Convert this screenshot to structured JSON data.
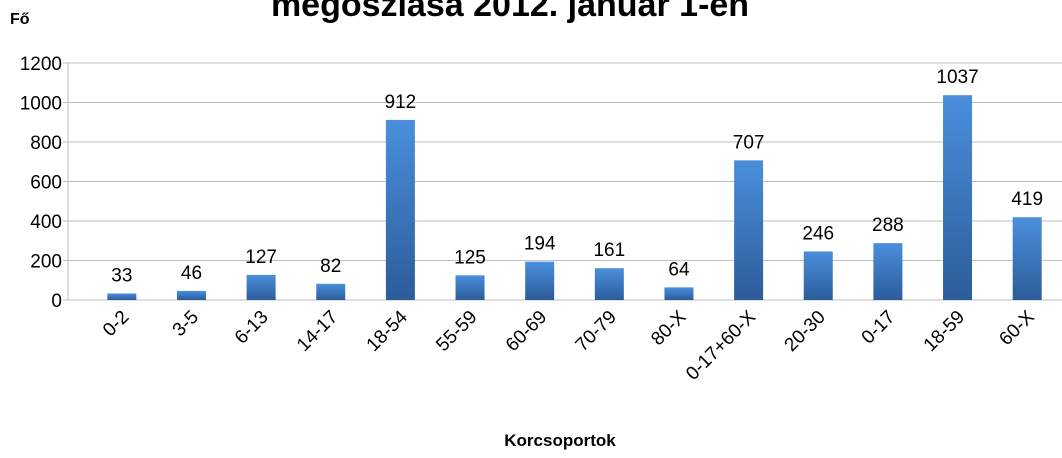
{
  "chart_data": {
    "type": "bar",
    "title": "megoszlása 2012. január 1-én",
    "y_label": "Fő",
    "x_label": "Korcsoportok",
    "categories": [
      "0-2",
      "3-5",
      "6-13",
      "14-17",
      "18-54",
      "55-59",
      "60-69",
      "70-79",
      "80-X",
      "0-17+60-X",
      "20-30",
      "0-17",
      "18-59",
      "60-X"
    ],
    "values": [
      33,
      46,
      127,
      82,
      912,
      125,
      194,
      161,
      64,
      707,
      246,
      288,
      1037,
      419
    ],
    "color": "#3d7cc9",
    "ylim": [
      0,
      1200
    ],
    "yticks": [
      0,
      200,
      400,
      600,
      800,
      1000,
      1200
    ],
    "grid": true
  }
}
